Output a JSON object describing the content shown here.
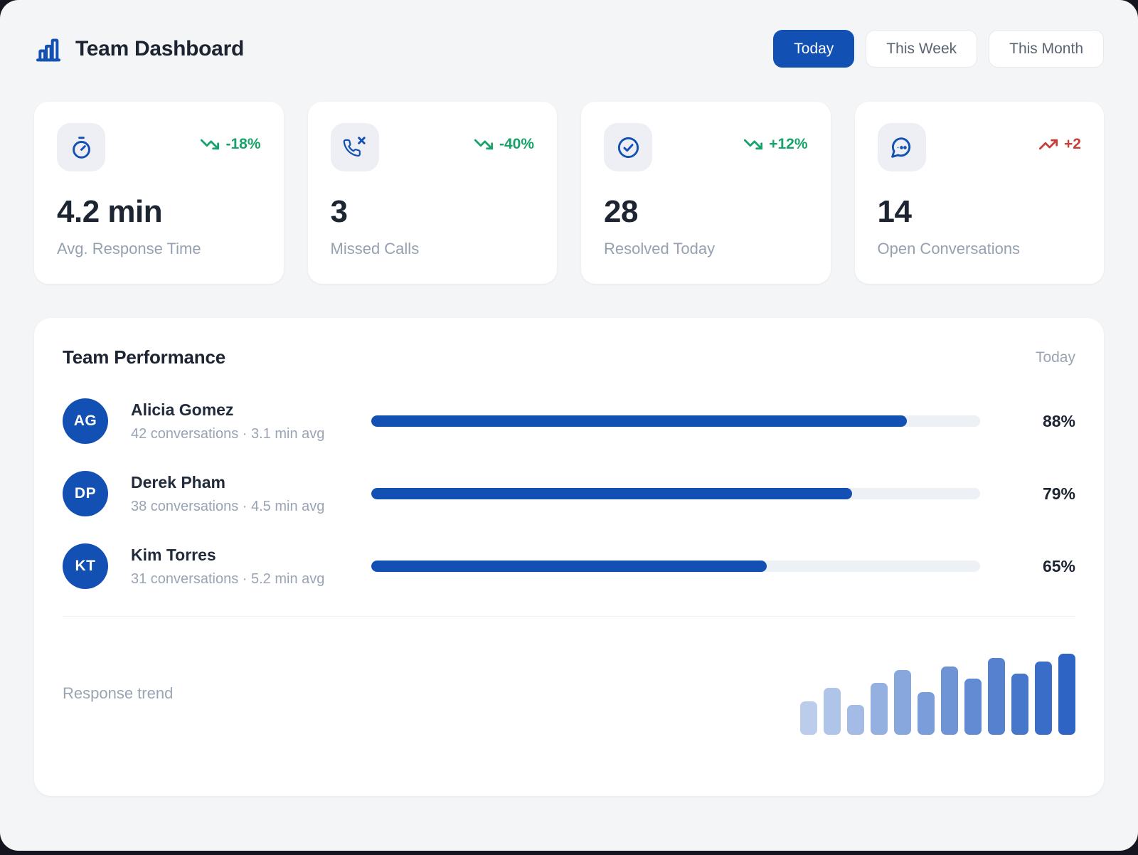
{
  "colors": {
    "brand": "#1350b4",
    "green": "#17a36a",
    "red": "#c8403c",
    "page_bg": "#f4f5f7",
    "backdrop": "#15151f",
    "tile_bg": "#edeff5",
    "track_bg": "#edf0f5",
    "chart_bar": "#2e64c4"
  },
  "header": {
    "title": "Team Dashboard",
    "tabs": [
      {
        "label": "Today",
        "active": true
      },
      {
        "label": "This Week",
        "active": false
      },
      {
        "label": "This Month",
        "active": false
      }
    ]
  },
  "stats": [
    {
      "icon": "timer-icon",
      "delta": "-18%",
      "trend": "down",
      "tone": "positive",
      "value": "4.2 min",
      "label": "Avg. Response Time"
    },
    {
      "icon": "phone-missed-icon",
      "delta": "-40%",
      "trend": "down",
      "tone": "positive",
      "value": "3",
      "label": "Missed Calls"
    },
    {
      "icon": "check-circle-icon",
      "delta": "+12%",
      "trend": "down",
      "tone": "positive",
      "value": "28",
      "label": "Resolved Today"
    },
    {
      "icon": "chat-bubble-icon",
      "delta": "+2",
      "trend": "up",
      "tone": "negative",
      "value": "14",
      "label": "Open Conversations"
    }
  ],
  "team": {
    "title": "Team Performance",
    "period_label": "Today",
    "members": [
      {
        "initials": "AG",
        "name": "Alicia Gomez",
        "meta": "42 conversations · 3.1 min avg",
        "percent": 88,
        "percent_label": "88%"
      },
      {
        "initials": "DP",
        "name": "Derek Pham",
        "meta": "38 conversations · 4.5 min avg",
        "percent": 79,
        "percent_label": "79%"
      },
      {
        "initials": "KT",
        "name": "Kim Torres",
        "meta": "31 conversations · 5.2 min avg",
        "percent": 65,
        "percent_label": "65%"
      }
    ],
    "trend_label": "Response trend"
  },
  "chart_data": {
    "type": "bar",
    "title": "Response trend",
    "bar_count": 12,
    "values": [
      41,
      58,
      37,
      64,
      80,
      53,
      84,
      69,
      95,
      75,
      90,
      100
    ],
    "unit": "relative bar height, % of tallest bar (sparkline has no axes or labels)",
    "xlabel": "",
    "ylabel": "",
    "style": {
      "color": "#2e64c4",
      "opacity_start": 0.32,
      "opacity_end": 1.0,
      "grid": false,
      "axes_hidden": true,
      "legend": false,
      "position": "bottom-right of Team Performance card"
    }
  }
}
